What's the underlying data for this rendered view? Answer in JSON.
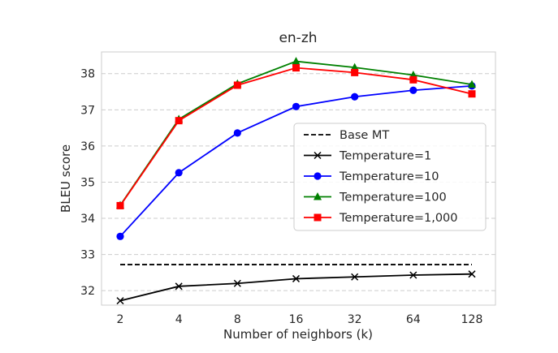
{
  "chart_data": {
    "type": "line",
    "title": "en-zh",
    "xlabel": "Number of neighbors (k)",
    "ylabel": "BLEU score",
    "categories": [
      "2",
      "4",
      "8",
      "16",
      "32",
      "64",
      "128"
    ],
    "ylim": [
      31.6,
      38.6
    ],
    "yticks": [
      32,
      33,
      34,
      35,
      36,
      37,
      38
    ],
    "grid": "horizontal dashed",
    "legend_position": "center-right",
    "baseline": {
      "name": "Base MT",
      "value": 32.72,
      "color": "#000000",
      "style": "dashed"
    },
    "series": [
      {
        "name": "Temperature=1",
        "color": "#000000",
        "marker": "x",
        "values": [
          31.72,
          32.12,
          32.2,
          32.33,
          32.38,
          32.43,
          32.46
        ]
      },
      {
        "name": "Temperature=10",
        "color": "#0000ff",
        "marker": "circle",
        "values": [
          33.5,
          35.26,
          36.36,
          37.09,
          37.36,
          37.54,
          37.66
        ]
      },
      {
        "name": "Temperature=100",
        "color": "#008000",
        "marker": "triangle",
        "values": [
          34.36,
          36.74,
          37.72,
          38.34,
          38.17,
          37.96,
          37.7
        ]
      },
      {
        "name": "Temperature=1,000",
        "color": "#ff0000",
        "marker": "square",
        "values": [
          34.35,
          36.7,
          37.68,
          38.16,
          38.03,
          37.83,
          37.44
        ]
      }
    ]
  }
}
